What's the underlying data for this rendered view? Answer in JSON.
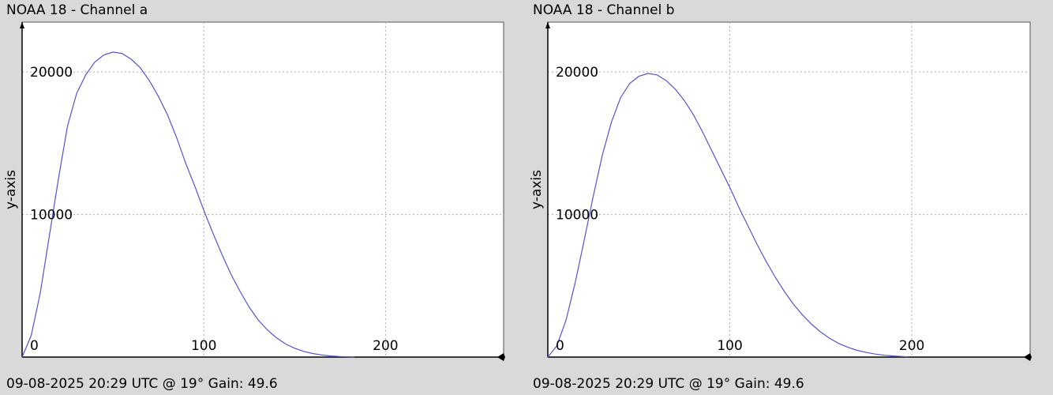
{
  "colors": {
    "background": "#d9d9d9",
    "plot_background": "#ffffff",
    "series": "#5555cc",
    "grid": "#aaaaaa",
    "axis": "#000000"
  },
  "chart_data": [
    {
      "type": "line",
      "title": "NOAA 18 - Channel a",
      "footer": "09-08-2025 20:29 UTC @ 19° Gain: 49.6",
      "xlabel": "",
      "ylabel": "y-axis",
      "xlim": [
        0,
        265
      ],
      "ylim": [
        0,
        23500
      ],
      "x_ticks": [
        "0",
        "100",
        "200"
      ],
      "y_ticks": [
        "20000",
        "10000"
      ],
      "x_tick_values": [
        0,
        100,
        200
      ],
      "y_tick_values": [
        20000,
        10000
      ],
      "grid": true,
      "series": [
        {
          "x": [
            0,
            5,
            10,
            15,
            20,
            25,
            30,
            35,
            40,
            45,
            50,
            55,
            60,
            65,
            70,
            75,
            80,
            85,
            90,
            95,
            100,
            105,
            110,
            115,
            120,
            125,
            130,
            135,
            140,
            145,
            150,
            155,
            160,
            165,
            170,
            175,
            180,
            183
          ],
          "y": [
            0,
            1500,
            4500,
            8500,
            12500,
            16200,
            18500,
            19800,
            20700,
            21200,
            21400,
            21300,
            20900,
            20300,
            19400,
            18300,
            17000,
            15400,
            13600,
            12000,
            10300,
            8700,
            7200,
            5800,
            4600,
            3500,
            2600,
            1900,
            1350,
            920,
            620,
            400,
            250,
            150,
            80,
            40,
            20,
            10
          ]
        }
      ]
    },
    {
      "type": "line",
      "title": "NOAA 18 - Channel b",
      "footer": "09-08-2025 20:29 UTC @ 19° Gain: 49.6",
      "xlabel": "",
      "ylabel": "y-axis",
      "xlim": [
        0,
        265
      ],
      "ylim": [
        0,
        23500
      ],
      "x_ticks": [
        "0",
        "100",
        "200"
      ],
      "y_ticks": [
        "20000",
        "10000"
      ],
      "x_tick_values": [
        0,
        100,
        200
      ],
      "y_tick_values": [
        20000,
        10000
      ],
      "grid": true,
      "series": [
        {
          "x": [
            0,
            5,
            10,
            15,
            20,
            25,
            30,
            35,
            40,
            45,
            50,
            55,
            60,
            65,
            70,
            75,
            80,
            85,
            90,
            95,
            100,
            105,
            110,
            115,
            120,
            125,
            130,
            135,
            140,
            145,
            150,
            155,
            160,
            165,
            170,
            175,
            180,
            185,
            190,
            195,
            198
          ],
          "y": [
            0,
            800,
            2600,
            5200,
            8200,
            11300,
            14200,
            16500,
            18200,
            19200,
            19700,
            19900,
            19800,
            19400,
            18800,
            18000,
            17000,
            15800,
            14500,
            13200,
            11900,
            10500,
            9200,
            7900,
            6700,
            5600,
            4600,
            3700,
            2950,
            2300,
            1750,
            1300,
            950,
            680,
            470,
            320,
            210,
            130,
            80,
            40,
            20
          ]
        }
      ]
    }
  ]
}
